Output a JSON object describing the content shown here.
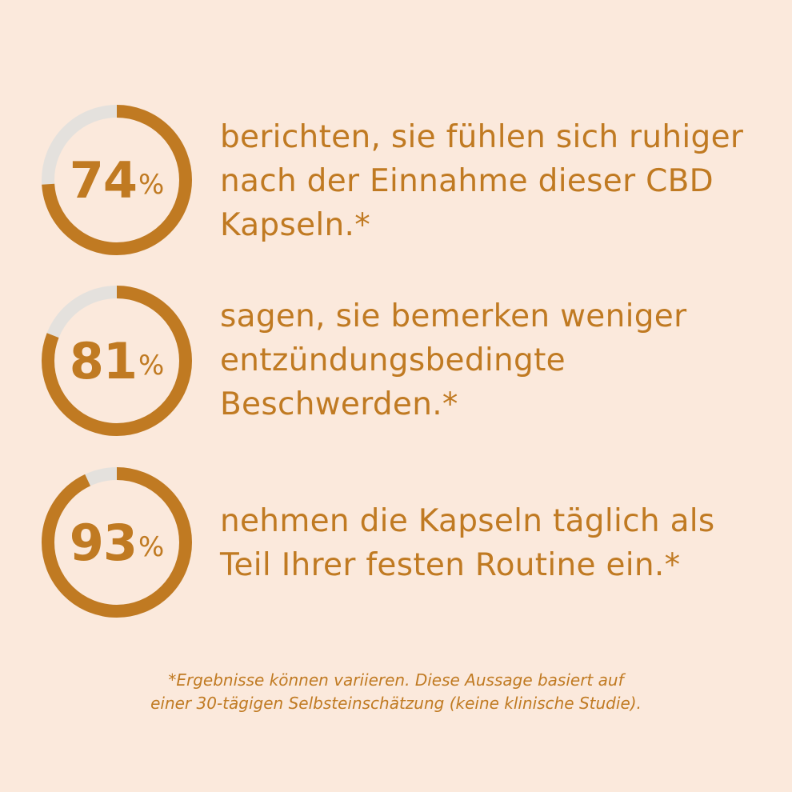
{
  "colors": {
    "background": "#fbe9dc",
    "accent": "#c07a22",
    "track": "#e4e1dd"
  },
  "stats": [
    {
      "value": 74,
      "number": "74",
      "percent_sign": "%",
      "lines": [
        "berichten, sie fühlen sich ruhiger",
        "nach der Einnahme dieser CBD",
        "Kapseln.*"
      ]
    },
    {
      "value": 81,
      "number": "81",
      "percent_sign": "%",
      "lines": [
        "sagen, sie bemerken weniger",
        "entzündungsbedingte",
        "Beschwerden.*"
      ]
    },
    {
      "value": 93,
      "number": "93",
      "percent_sign": "%",
      "lines": [
        "nehmen die Kapseln täglich als",
        "Teil Ihrer festen Routine ein.*"
      ]
    }
  ],
  "footnote": [
    "*Ergebnisse können variieren. Diese Aussage basiert auf",
    "einer 30-tägigen Selbsteinschätzung (keine klinische Studie)."
  ]
}
